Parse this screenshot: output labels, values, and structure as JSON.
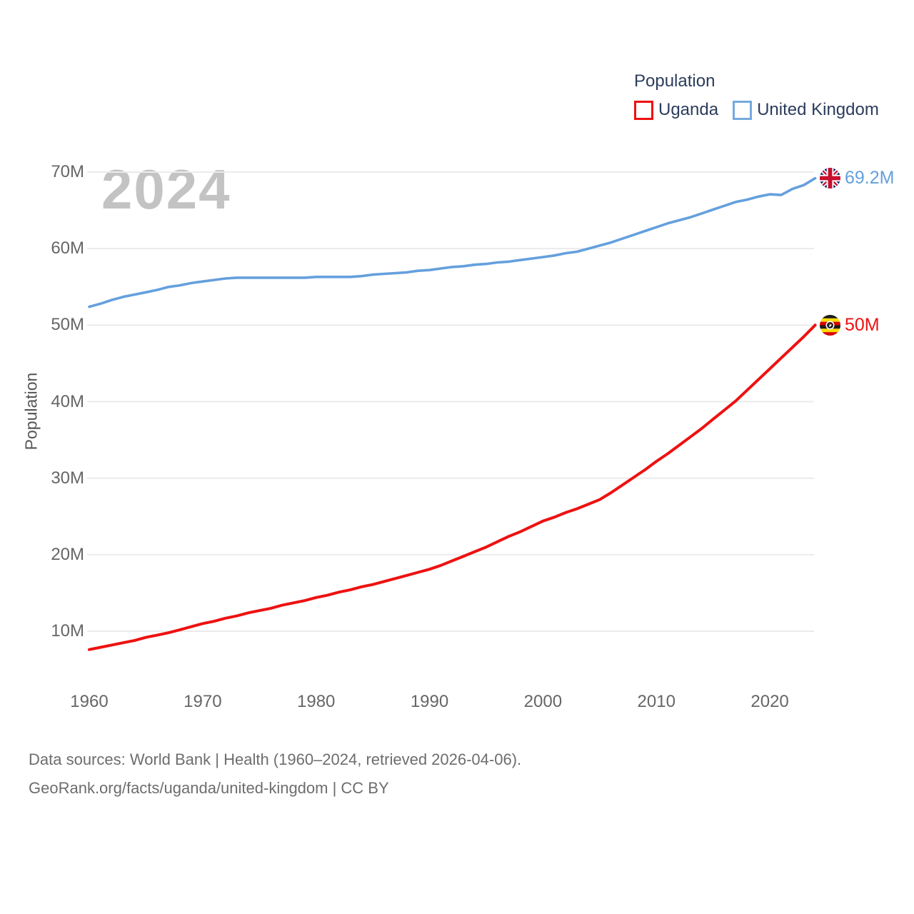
{
  "watermark": "2024",
  "legend": {
    "title": "Population",
    "items": [
      {
        "label": "Uganda",
        "color": "#ee1111"
      },
      {
        "label": "United Kingdom",
        "color": "#74aadf"
      }
    ]
  },
  "y_axis": {
    "title": "Population",
    "ticks": [
      "10M",
      "20M",
      "30M",
      "40M",
      "50M",
      "60M",
      "70M"
    ]
  },
  "x_axis": {
    "ticks": [
      "1960",
      "1970",
      "1980",
      "1990",
      "2000",
      "2010",
      "2020"
    ]
  },
  "end_labels": {
    "uk": {
      "value": "69.2M",
      "color": "#64a0dd",
      "icon": "uk-flag-icon"
    },
    "uganda": {
      "value": "50M",
      "color": "#ee1111",
      "icon": "uganda-flag-icon"
    }
  },
  "footer": {
    "line1": "Data sources: World Bank | Health (1960–2024, retrieved 2026-04-06).",
    "line2": "GeoRank.org/facts/uganda/united-kingdom | CC BY"
  },
  "colors": {
    "uganda_red": "#ee1111",
    "uk_blue": "#64a0dd",
    "legend_text": "#2b3c5c",
    "axis_text": "#666666",
    "watermark_gray": "#c3c3c3",
    "gridline": "#ebebeb"
  },
  "chart_data": {
    "type": "line",
    "title": "Population",
    "ylabel": "Population",
    "xlabel": "",
    "xlim": [
      1960,
      2024
    ],
    "ylim": [
      6,
      71
    ],
    "grid": "horizontal",
    "legend_position": "top-right",
    "yticks_values": [
      10,
      20,
      30,
      40,
      50,
      60,
      70
    ],
    "xticks_values": [
      1960,
      1970,
      1980,
      1990,
      2000,
      2010,
      2020
    ],
    "x": [
      1960,
      1961,
      1962,
      1963,
      1964,
      1965,
      1966,
      1967,
      1968,
      1969,
      1970,
      1971,
      1972,
      1973,
      1974,
      1975,
      1976,
      1977,
      1978,
      1979,
      1980,
      1981,
      1982,
      1983,
      1984,
      1985,
      1986,
      1987,
      1988,
      1989,
      1990,
      1991,
      1992,
      1993,
      1994,
      1995,
      1996,
      1997,
      1998,
      1999,
      2000,
      2001,
      2002,
      2003,
      2004,
      2005,
      2006,
      2007,
      2008,
      2009,
      2010,
      2011,
      2012,
      2013,
      2014,
      2015,
      2016,
      2017,
      2018,
      2019,
      2020,
      2021,
      2022,
      2023,
      2024
    ],
    "series": [
      {
        "name": "Uganda",
        "color": "#ee1111",
        "unit": "millions",
        "end_value_label": "50M",
        "values": [
          7.6,
          7.9,
          8.2,
          8.5,
          8.8,
          9.2,
          9.5,
          9.8,
          10.2,
          10.6,
          11.0,
          11.3,
          11.7,
          12.0,
          12.4,
          12.7,
          13.0,
          13.4,
          13.7,
          14.0,
          14.4,
          14.7,
          15.1,
          15.4,
          15.8,
          16.1,
          16.5,
          16.9,
          17.3,
          17.7,
          18.1,
          18.6,
          19.2,
          19.8,
          20.4,
          21.0,
          21.7,
          22.4,
          23.0,
          23.7,
          24.4,
          24.9,
          25.5,
          26.0,
          26.6,
          27.2,
          28.1,
          29.1,
          30.1,
          31.1,
          32.2,
          33.2,
          34.3,
          35.4,
          36.5,
          37.7,
          38.9,
          40.1,
          41.5,
          42.9,
          44.3,
          45.7,
          47.1,
          48.5,
          50.0
        ]
      },
      {
        "name": "United Kingdom",
        "color": "#64a0dd",
        "unit": "millions",
        "end_value_label": "69.2M",
        "values": [
          52.4,
          52.8,
          53.3,
          53.7,
          54.0,
          54.3,
          54.6,
          55.0,
          55.2,
          55.5,
          55.7,
          55.9,
          56.1,
          56.2,
          56.2,
          56.2,
          56.2,
          56.2,
          56.2,
          56.2,
          56.3,
          56.3,
          56.3,
          56.3,
          56.4,
          56.6,
          56.7,
          56.8,
          56.9,
          57.1,
          57.2,
          57.4,
          57.6,
          57.7,
          57.9,
          58.0,
          58.2,
          58.3,
          58.5,
          58.7,
          58.9,
          59.1,
          59.4,
          59.6,
          60.0,
          60.4,
          60.8,
          61.3,
          61.8,
          62.3,
          62.8,
          63.3,
          63.7,
          64.1,
          64.6,
          65.1,
          65.6,
          66.1,
          66.4,
          66.8,
          67.1,
          67.0,
          67.8,
          68.3,
          69.2
        ]
      }
    ]
  }
}
